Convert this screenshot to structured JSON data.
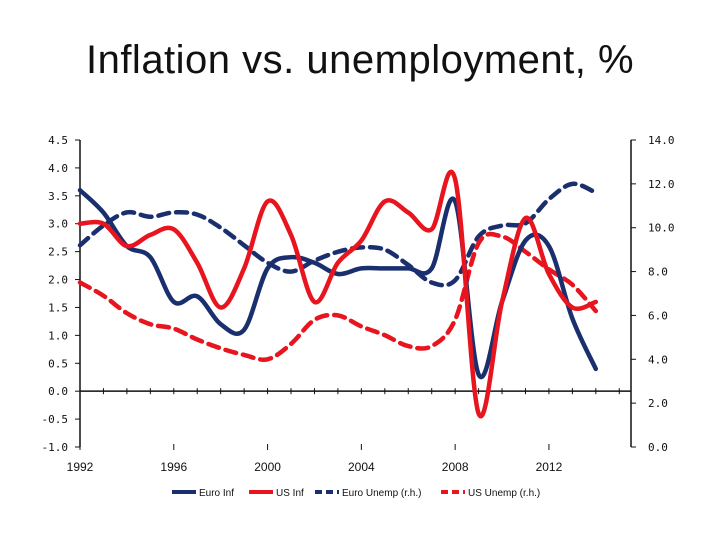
{
  "title": "Inflation vs. unemployment, %",
  "chart_data": {
    "type": "line",
    "title": "Inflation vs. unemployment, %",
    "x_ticks": [
      1992,
      1996,
      2000,
      2004,
      2008,
      2012
    ],
    "x_tick_labels": [
      "1992",
      "1996",
      "2000",
      "2004",
      "2008",
      "2012"
    ],
    "xlim": [
      1992,
      2014
    ],
    "y_left": {
      "lim": [
        -1.0,
        4.5
      ],
      "ticks": [
        4.5,
        4.0,
        3.5,
        3.0,
        2.5,
        2.0,
        1.5,
        1.0,
        0.5,
        0.0,
        -0.5,
        -1.0
      ],
      "tick_labels": [
        "4.5",
        "4.0",
        "3.5",
        "3.0",
        "2.5",
        "2.0",
        "1.5",
        "1.0",
        "0.5",
        "0.0",
        "-0.5",
        "-1.0"
      ]
    },
    "y_right": {
      "lim": [
        0.0,
        14.0
      ],
      "ticks": [
        14,
        12,
        10,
        8,
        6,
        4,
        2,
        0
      ],
      "tick_labels": [
        "14.0",
        "12.0",
        "10.0",
        "8.0",
        "6.0",
        "4.0",
        "2.0",
        "0.0"
      ]
    },
    "grid": false,
    "legend_position": "bottom",
    "series": [
      {
        "name": "Euro Inf",
        "axis": "left",
        "color": "#1a2f6e",
        "dash": "solid",
        "x": [
          1992,
          1993,
          1994,
          1995,
          1996,
          1997,
          1998,
          1999,
          2000,
          2001,
          2002,
          2003,
          2004,
          2005,
          2006,
          2007,
          2008,
          2009,
          2010,
          2011,
          2012,
          2013,
          2014
        ],
        "y": [
          3.6,
          3.2,
          2.6,
          2.4,
          1.6,
          1.7,
          1.2,
          1.1,
          2.2,
          2.4,
          2.3,
          2.1,
          2.2,
          2.2,
          2.2,
          2.2,
          3.4,
          0.3,
          1.6,
          2.7,
          2.6,
          1.3,
          0.4
        ]
      },
      {
        "name": "US Inf",
        "axis": "left",
        "color": "#e8141e",
        "dash": "solid",
        "x": [
          1992,
          1993,
          1994,
          1995,
          1996,
          1997,
          1998,
          1999,
          2000,
          2001,
          2002,
          2003,
          2004,
          2005,
          2006,
          2007,
          2008,
          2009,
          2010,
          2011,
          2012,
          2013,
          2014
        ],
        "y": [
          3.0,
          3.0,
          2.6,
          2.8,
          2.9,
          2.3,
          1.5,
          2.2,
          3.4,
          2.8,
          1.6,
          2.3,
          2.7,
          3.4,
          3.2,
          2.9,
          3.8,
          -0.4,
          1.6,
          3.1,
          2.1,
          1.5,
          1.6
        ]
      },
      {
        "name": "Euro Unemp (r.h.)",
        "axis": "right",
        "color": "#1a2f6e",
        "dash": "dashed",
        "x": [
          1992,
          1993,
          1994,
          1995,
          1996,
          1997,
          1998,
          1999,
          2000,
          2001,
          2002,
          2003,
          2004,
          2005,
          2006,
          2007,
          2008,
          2009,
          2010,
          2011,
          2012,
          2013,
          2014
        ],
        "y": [
          9.2,
          10.1,
          10.7,
          10.5,
          10.7,
          10.6,
          10.0,
          9.2,
          8.4,
          8.0,
          8.5,
          8.9,
          9.1,
          9.0,
          8.3,
          7.5,
          7.6,
          9.6,
          10.1,
          10.2,
          11.3,
          12.0,
          11.6
        ]
      },
      {
        "name": "US Unemp (r.h.)",
        "axis": "right",
        "color": "#e8141e",
        "dash": "dashed",
        "x": [
          1992,
          1993,
          1994,
          1995,
          1996,
          1997,
          1998,
          1999,
          2000,
          2001,
          2002,
          2003,
          2004,
          2005,
          2006,
          2007,
          2008,
          2009,
          2010,
          2011,
          2012,
          2013,
          2014
        ],
        "y": [
          7.5,
          6.9,
          6.1,
          5.6,
          5.4,
          4.9,
          4.5,
          4.2,
          4.0,
          4.7,
          5.8,
          6.0,
          5.5,
          5.1,
          4.6,
          4.6,
          5.8,
          9.3,
          9.6,
          8.9,
          8.1,
          7.4,
          6.2
        ]
      }
    ]
  }
}
